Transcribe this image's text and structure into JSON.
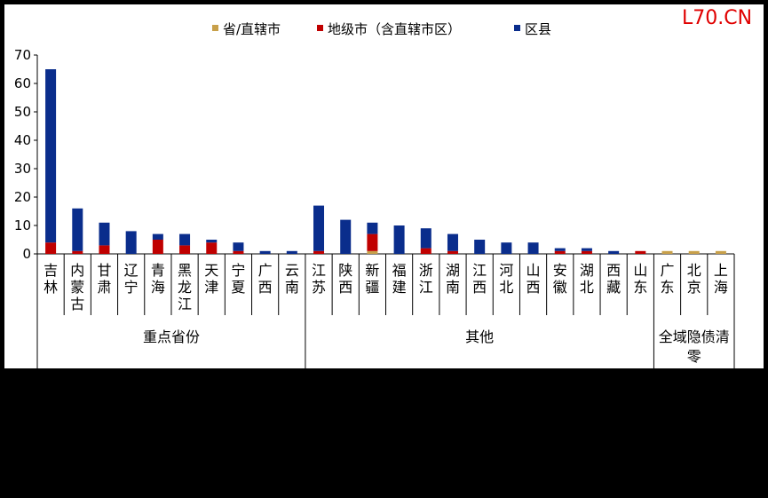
{
  "watermark": "L70.CN",
  "colors": {
    "province": "#c8a04a",
    "city": "#c00000",
    "county": "#0a2d8c"
  },
  "chart_data": {
    "type": "bar",
    "stacked": true,
    "ylim": [
      0,
      70
    ],
    "yticks": [
      0,
      10,
      20,
      30,
      40,
      50,
      60,
      70
    ],
    "legend_position": "top",
    "categories": [
      "吉林",
      "内蒙古",
      "甘肃",
      "辽宁",
      "青海",
      "黑龙江",
      "天津",
      "宁夏",
      "广西",
      "云南",
      "江苏",
      "陕西",
      "新疆",
      "福建",
      "浙江",
      "湖南",
      "江西",
      "河北",
      "山西",
      "安徽",
      "湖北",
      "西藏",
      "山东",
      "广东",
      "北京",
      "上海"
    ],
    "groups": [
      {
        "label": "重点省份",
        "start": 0,
        "end": 9
      },
      {
        "label": "其他",
        "start": 10,
        "end": 22
      },
      {
        "label": "全域隐债清零",
        "start": 23,
        "end": 25
      }
    ],
    "series": [
      {
        "name": "省/直辖市",
        "color_key": "province",
        "values": [
          0,
          0,
          0,
          0,
          0,
          0,
          0,
          0,
          0,
          0,
          0,
          0,
          1,
          0,
          0,
          0,
          0,
          0,
          0,
          0,
          0,
          0,
          0,
          1,
          1,
          1
        ]
      },
      {
        "name": "地级市（含直辖市区）",
        "color_key": "city",
        "values": [
          4,
          1,
          3,
          0,
          5,
          3,
          4,
          1,
          0,
          0,
          1,
          0,
          6,
          0,
          2,
          1,
          0,
          0,
          0,
          1,
          1,
          0,
          1,
          0,
          0,
          0
        ]
      },
      {
        "name": "区县",
        "color_key": "county",
        "values": [
          61,
          15,
          8,
          8,
          2,
          4,
          1,
          3,
          1,
          1,
          16,
          12,
          4,
          10,
          7,
          6,
          5,
          4,
          4,
          1,
          1,
          1,
          0,
          0,
          0,
          0
        ]
      }
    ]
  }
}
